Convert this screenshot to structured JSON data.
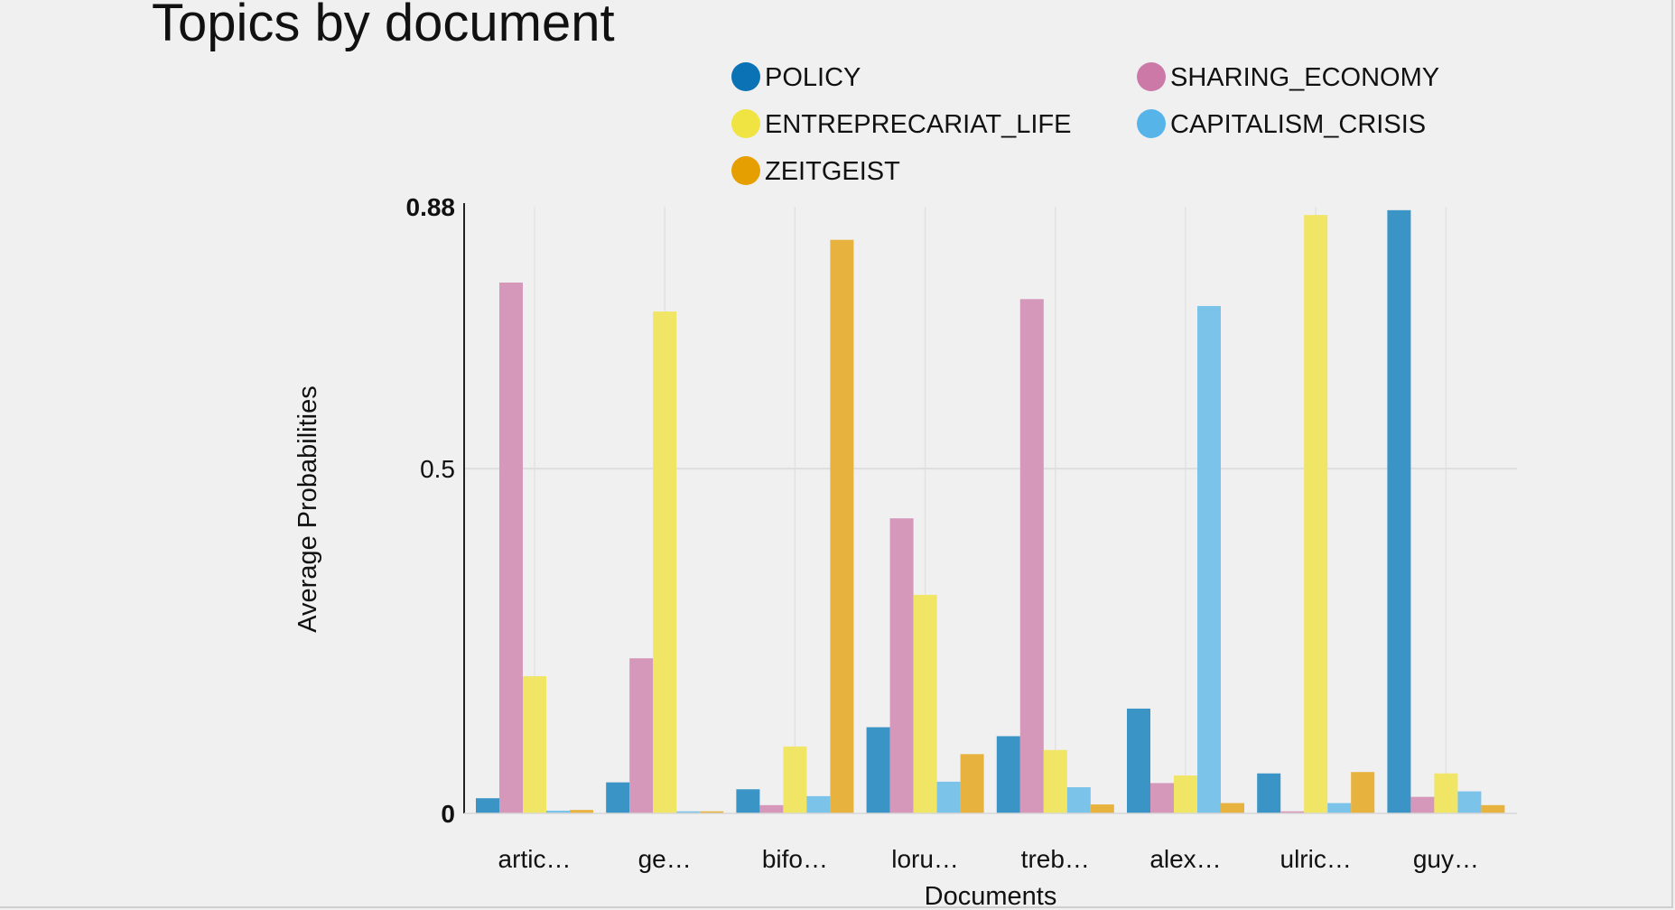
{
  "chart_data": {
    "type": "bar",
    "title": "Topics by document",
    "xlabel": "Documents",
    "ylabel": "Average Probabilities",
    "ylim": [
      0,
      0.88
    ],
    "y_ticks": [
      "0",
      "0.5",
      "0.88"
    ],
    "grid": true,
    "legend_position": "top",
    "categories": [
      "artic…",
      "ge…",
      "bifo…",
      "loru…",
      "treb…",
      "alex…",
      "ulric…",
      "guy…"
    ],
    "series": [
      {
        "name": "POLICY",
        "color": "#3a94c6",
        "legend_color": "#0b72b5",
        "values": [
          0.022,
          0.045,
          0.035,
          0.125,
          0.112,
          0.152,
          0.058,
          0.875
        ]
      },
      {
        "name": "SHARING_ECONOMY",
        "color": "#d597ba",
        "legend_color": "#cc79a7",
        "values": [
          0.77,
          0.225,
          0.012,
          0.428,
          0.746,
          0.044,
          0.003,
          0.024
        ]
      },
      {
        "name": "ENTREPRECARIAT_LIFE",
        "color": "#f0e565",
        "legend_color": "#f0e442",
        "values": [
          0.199,
          0.728,
          0.097,
          0.317,
          0.092,
          0.055,
          0.868,
          0.058
        ]
      },
      {
        "name": "CAPITALISM_CRISIS",
        "color": "#7cc3ea",
        "legend_color": "#56b4e9",
        "values": [
          0.004,
          0.003,
          0.025,
          0.046,
          0.038,
          0.736,
          0.015,
          0.032
        ]
      },
      {
        "name": "ZEITGEIST",
        "color": "#e8b23e",
        "legend_color": "#e69f00",
        "values": [
          0.005,
          0.003,
          0.832,
          0.086,
          0.013,
          0.015,
          0.06,
          0.012
        ]
      }
    ]
  }
}
